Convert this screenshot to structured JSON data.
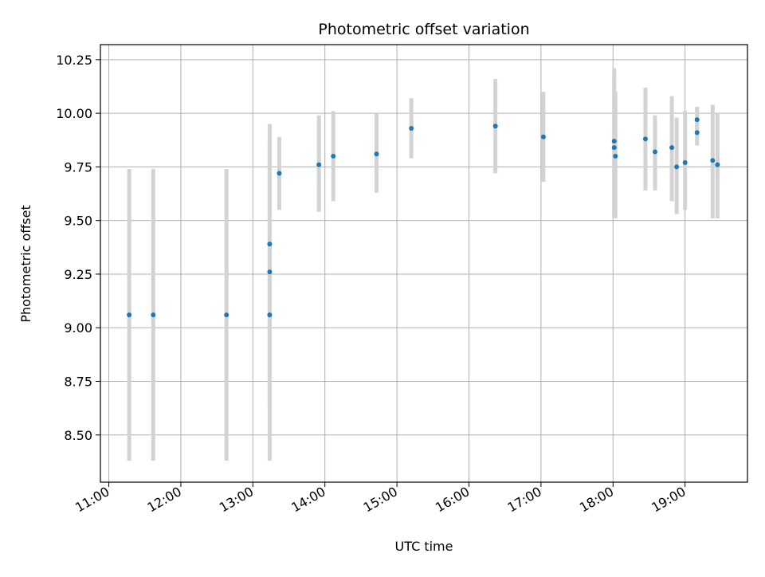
{
  "chart_data": {
    "type": "scatter",
    "title": "Photometric offset variation",
    "xlabel": "UTC time",
    "ylabel": "Photometric offset",
    "xlim": [
      "10:53",
      "19:52"
    ],
    "ylim": [
      8.28,
      10.32
    ],
    "x_ticks": [
      "11:00",
      "12:00",
      "13:00",
      "14:00",
      "15:00",
      "16:00",
      "17:00",
      "18:00",
      "19:00"
    ],
    "y_ticks": [
      8.5,
      8.75,
      9.0,
      9.25,
      9.5,
      9.75,
      10.0,
      10.25
    ],
    "y_tick_labels": [
      "8.50",
      "8.75",
      "9.00",
      "9.25",
      "9.50",
      "9.75",
      "10.00",
      "10.25"
    ],
    "grid": true,
    "marker_color": "#1f77b4",
    "errorbar_color": "#d3d3d3",
    "points": [
      {
        "t": "11:17",
        "y": 9.06,
        "ylow": 8.38,
        "yhigh": 9.74
      },
      {
        "t": "11:37",
        "y": 9.06,
        "ylow": 8.38,
        "yhigh": 9.74
      },
      {
        "t": "12:38",
        "y": 9.06,
        "ylow": 8.38,
        "yhigh": 9.74
      },
      {
        "t": "13:14",
        "y": 9.06,
        "ylow": 8.38,
        "yhigh": 9.74
      },
      {
        "t": "13:14",
        "y": 9.26,
        "ylow": 8.63,
        "yhigh": 9.87
      },
      {
        "t": "13:14",
        "y": 9.39,
        "ylow": 8.84,
        "yhigh": 9.95
      },
      {
        "t": "13:22",
        "y": 9.72,
        "ylow": 9.55,
        "yhigh": 9.89
      },
      {
        "t": "13:55",
        "y": 9.76,
        "ylow": 9.54,
        "yhigh": 9.99
      },
      {
        "t": "14:07",
        "y": 9.8,
        "ylow": 9.59,
        "yhigh": 10.01
      },
      {
        "t": "14:43",
        "y": 9.81,
        "ylow": 9.63,
        "yhigh": 10.0
      },
      {
        "t": "15:12",
        "y": 9.93,
        "ylow": 9.79,
        "yhigh": 10.07
      },
      {
        "t": "16:22",
        "y": 9.94,
        "ylow": 9.72,
        "yhigh": 10.16
      },
      {
        "t": "17:02",
        "y": 9.89,
        "ylow": 9.68,
        "yhigh": 10.1
      },
      {
        "t": "18:01",
        "y": 9.87,
        "ylow": 9.52,
        "yhigh": 10.21
      },
      {
        "t": "18:01",
        "y": 9.84,
        "ylow": 9.51,
        "yhigh": 10.17
      },
      {
        "t": "18:02",
        "y": 9.8,
        "ylow": 9.51,
        "yhigh": 10.1
      },
      {
        "t": "18:27",
        "y": 9.88,
        "ylow": 9.64,
        "yhigh": 10.12
      },
      {
        "t": "18:35",
        "y": 9.82,
        "ylow": 9.64,
        "yhigh": 9.99
      },
      {
        "t": "18:49",
        "y": 9.84,
        "ylow": 9.59,
        "yhigh": 10.08
      },
      {
        "t": "18:53",
        "y": 9.75,
        "ylow": 9.53,
        "yhigh": 9.98
      },
      {
        "t": "19:00",
        "y": 9.77,
        "ylow": 9.55,
        "yhigh": 10.01
      },
      {
        "t": "19:10",
        "y": 9.97,
        "ylow": 9.91,
        "yhigh": 10.03
      },
      {
        "t": "19:10",
        "y": 9.91,
        "ylow": 9.85,
        "yhigh": 9.97
      },
      {
        "t": "19:23",
        "y": 9.78,
        "ylow": 9.51,
        "yhigh": 10.04
      },
      {
        "t": "19:27",
        "y": 9.76,
        "ylow": 9.51,
        "yhigh": 10.0
      }
    ]
  }
}
